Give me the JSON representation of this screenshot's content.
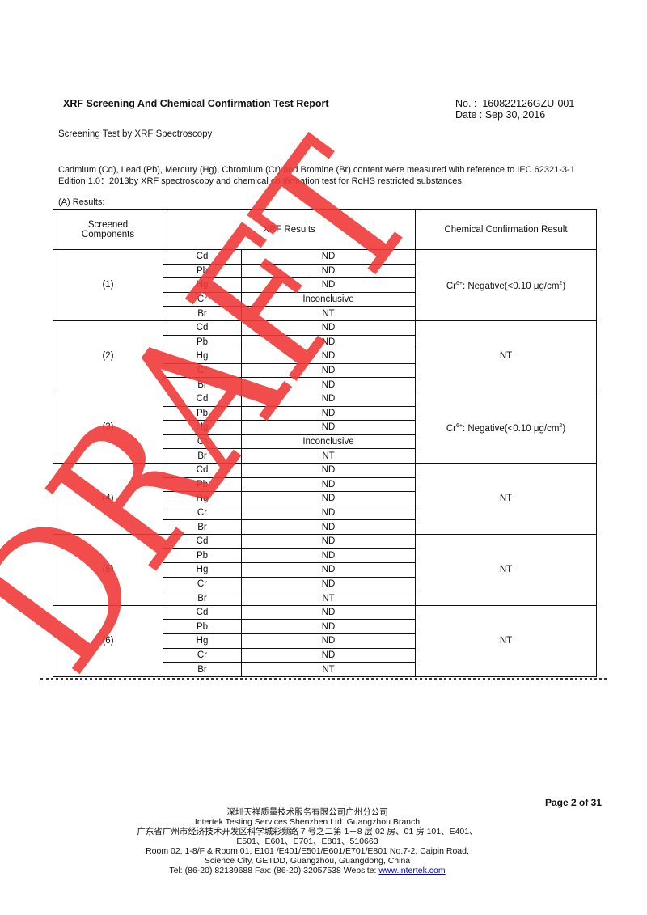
{
  "header": {
    "title": "XRF Screening And Chemical Confirmation Test Report",
    "no_label": "No. :",
    "no_value": "160822126GZU-001",
    "date_label": "Date  :",
    "date_value": "Sep 30, 2016"
  },
  "section_title": "Screening Test by XRF Spectroscopy",
  "intro": "Cadmium (Cd), Lead (Pb), Mercury (Hg), Chromium (Cr) and Bromine (Br) content were measured with reference to IEC 62321-3-1 Edition 1.0：2013by XRF spectroscopy and chemical confirmation test for RoHS restricted substances.",
  "results_label": "(A) Results:",
  "table": {
    "headers": [
      "Screened Components",
      "XRF Results",
      "Chemical Confirmation Result"
    ],
    "groups": [
      {
        "component": "(1)",
        "rows": [
          [
            "Cd",
            "ND"
          ],
          [
            "Pb",
            "ND"
          ],
          [
            "Hg",
            "ND"
          ],
          [
            "Cr",
            "Inconclusive"
          ],
          [
            "Br",
            "NT"
          ]
        ],
        "chem": "Cr6+: Negative(<0.10 μg/cm2)"
      },
      {
        "component": "(2)",
        "rows": [
          [
            "Cd",
            "ND"
          ],
          [
            "Pb",
            "ND"
          ],
          [
            "Hg",
            "ND"
          ],
          [
            "Cr",
            "ND"
          ],
          [
            "Br",
            "ND"
          ]
        ],
        "chem": "NT"
      },
      {
        "component": "(3)",
        "rows": [
          [
            "Cd",
            "ND"
          ],
          [
            "Pb",
            "ND"
          ],
          [
            "Hg",
            "ND"
          ],
          [
            "Cr",
            "Inconclusive"
          ],
          [
            "Br",
            "NT"
          ]
        ],
        "chem": "Cr6+: Negative(<0.10 μg/cm2)"
      },
      {
        "component": "(4)",
        "rows": [
          [
            "Cd",
            "ND"
          ],
          [
            "Pb",
            "ND"
          ],
          [
            "Hg",
            "ND"
          ],
          [
            "Cr",
            "ND"
          ],
          [
            "Br",
            "ND"
          ]
        ],
        "chem": "NT"
      },
      {
        "component": "(5)",
        "rows": [
          [
            "Cd",
            "ND"
          ],
          [
            "Pb",
            "ND"
          ],
          [
            "Hg",
            "ND"
          ],
          [
            "Cr",
            "ND"
          ],
          [
            "Br",
            "NT"
          ]
        ],
        "chem": "NT"
      },
      {
        "component": "(6)",
        "rows": [
          [
            "Cd",
            "ND"
          ],
          [
            "Pb",
            "ND"
          ],
          [
            "Hg",
            "ND"
          ],
          [
            "Cr",
            "ND"
          ],
          [
            "Br",
            "NT"
          ]
        ],
        "chem": "NT"
      }
    ]
  },
  "watermark": {
    "text": "DRAFT",
    "color": "#f03a3a"
  },
  "footer": {
    "page": "Page 2 of 31",
    "lines": [
      "深圳天祥质量技术服务有限公司广州分公司",
      "Intertek Testing Services Shenzhen Ltd. Guangzhou Branch",
      "广东省广州市经济技术开发区科学城彩频路 7 号之二第 1－8 层 02 房、01 房 101、E401、",
      "E501、E601、E701、E801、510663",
      "Room 02, 1-8/F & Room 01, E101 /E401/E501/E601/E701/E801 No.7-2, Caipin Road,",
      "Science City, GETDD, Guangzhou, Guangdong, China"
    ],
    "contact": "Tel: (86-20) 82139688 Fax: (86-20) 32057538 Website: ",
    "website": "www.intertek.com"
  }
}
